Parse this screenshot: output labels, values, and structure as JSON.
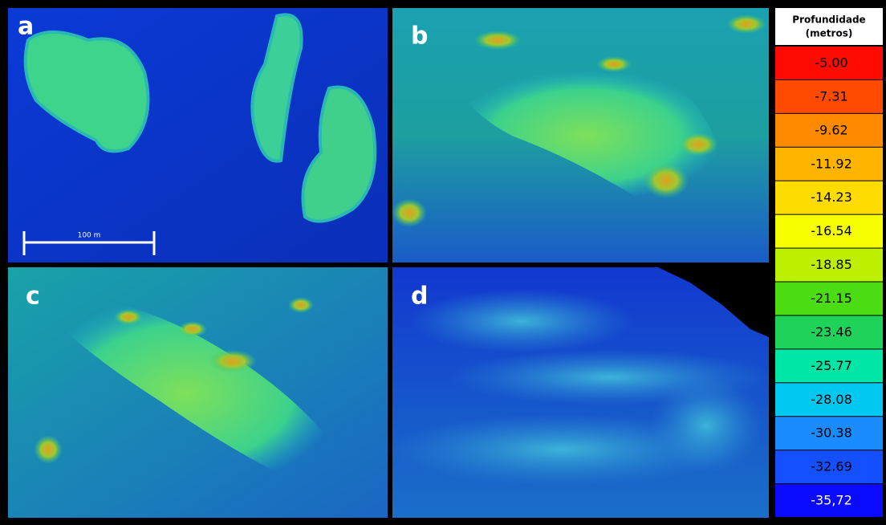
{
  "panels": [
    {
      "label": "a"
    },
    {
      "label": "b"
    },
    {
      "label": "c"
    },
    {
      "label": "d"
    }
  ],
  "scale_bar": {
    "label": "100 m"
  },
  "legend": {
    "title": [
      "Profundidade",
      "(metros)"
    ],
    "entries": [
      {
        "label": "-5.00",
        "color": "#ff0a00"
      },
      {
        "label": "-7.31",
        "color": "#ff4a00"
      },
      {
        "label": "-9.62",
        "color": "#ff8a00"
      },
      {
        "label": "-11.92",
        "color": "#ffb400"
      },
      {
        "label": "-14.23",
        "color": "#ffdc00"
      },
      {
        "label": "-16.54",
        "color": "#f5ff00"
      },
      {
        "label": "-18.85",
        "color": "#bdf000"
      },
      {
        "label": "-21.15",
        "color": "#4cdc14"
      },
      {
        "label": "-23.46",
        "color": "#1ed25a"
      },
      {
        "label": "-25.77",
        "color": "#00e6a6"
      },
      {
        "label": "-28.08",
        "color": "#00c8f0"
      },
      {
        "label": "-30.38",
        "color": "#1a8cff"
      },
      {
        "label": "-32.69",
        "color": "#1450ff"
      },
      {
        "label": "-35,72",
        "color": "#0a0aff"
      }
    ]
  }
}
